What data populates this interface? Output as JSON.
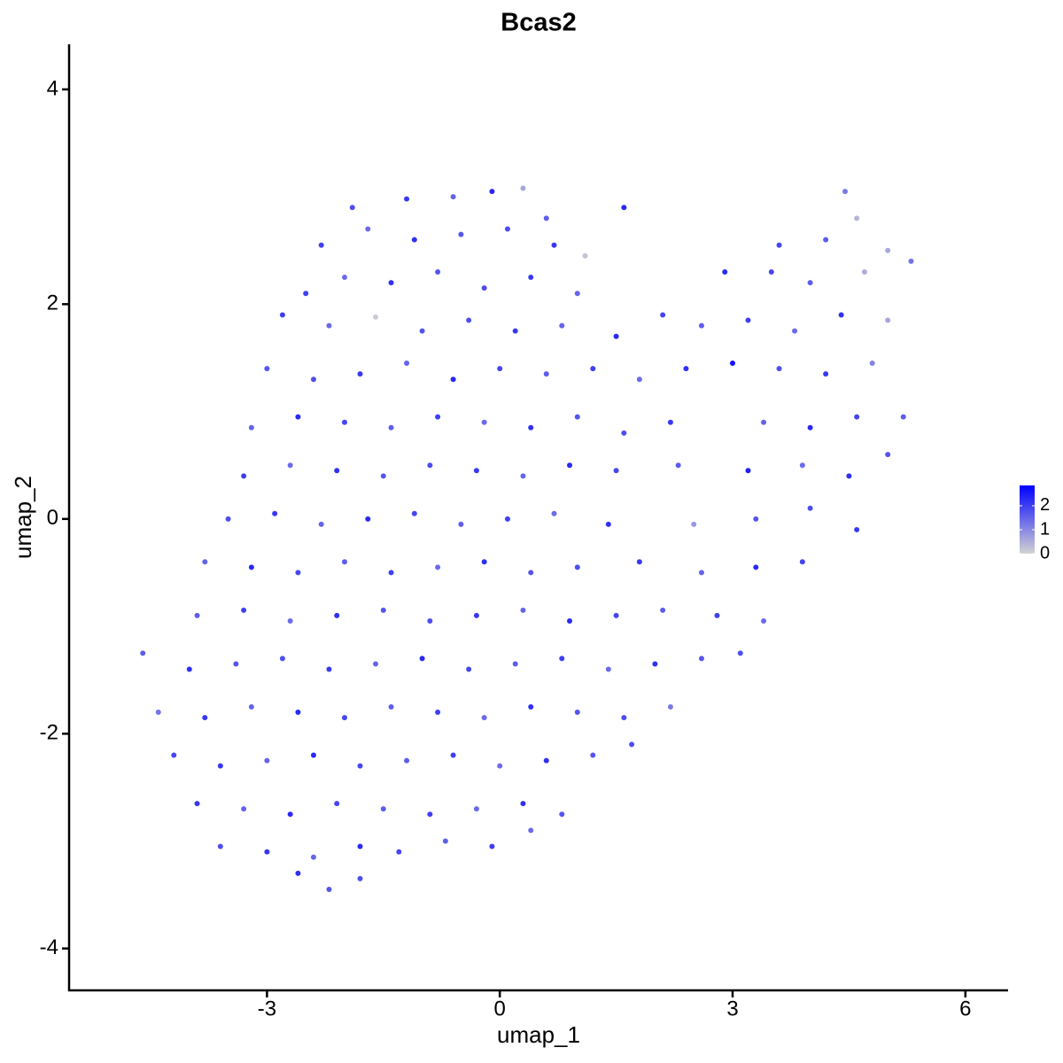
{
  "chart_data": {
    "type": "scatter",
    "title": "Bcas2",
    "x_label": "umap_1",
    "y_label": "umap_2",
    "xlim": [
      -5.55,
      6.55
    ],
    "ylim": [
      -4.39,
      4.42
    ],
    "xticks": [
      -3,
      0,
      3,
      6
    ],
    "yticks": [
      -4,
      -2,
      0,
      2,
      4
    ],
    "colorlim": [
      0,
      2.85
    ],
    "colorticks": [
      0,
      1,
      2
    ],
    "low_color": "#d3d3d3",
    "high_color": "#0000ff",
    "x": [
      -1.9,
      -1.2,
      -0.6,
      -0.1,
      0.3,
      0.6,
      4.45,
      -2.3,
      -1.7,
      -1.1,
      -0.5,
      0.1,
      0.7,
      1.1,
      1.6,
      3.6,
      4.2,
      4.6,
      5.0,
      -2.5,
      -2.0,
      -1.4,
      -0.8,
      -0.2,
      0.4,
      1.0,
      2.9,
      3.5,
      4.0,
      4.7,
      5.3,
      -2.8,
      -2.2,
      -1.6,
      -1.0,
      -0.4,
      0.2,
      0.8,
      1.5,
      2.1,
      2.6,
      3.2,
      3.8,
      4.4,
      5.0,
      -3.0,
      -2.4,
      -1.8,
      -1.2,
      -0.6,
      0.0,
      0.6,
      1.2,
      1.8,
      2.4,
      3.0,
      3.6,
      4.2,
      4.8,
      -3.2,
      -2.6,
      -2.0,
      -1.4,
      -0.8,
      -0.2,
      0.4,
      1.0,
      1.6,
      2.2,
      3.4,
      4.0,
      4.6,
      5.2,
      -3.3,
      -2.7,
      -2.1,
      -1.5,
      -0.9,
      -0.3,
      0.3,
      0.9,
      1.5,
      2.3,
      3.2,
      3.9,
      4.5,
      5.0,
      -3.5,
      -2.9,
      -2.3,
      -1.7,
      -1.1,
      -0.5,
      0.1,
      0.7,
      1.4,
      2.5,
      3.3,
      4.0,
      4.6,
      -3.8,
      -3.2,
      -2.6,
      -2.0,
      -1.4,
      -0.8,
      -0.2,
      0.4,
      1.0,
      1.8,
      2.6,
      3.3,
      3.9,
      -3.9,
      -3.3,
      -2.7,
      -2.1,
      -1.5,
      -0.9,
      -0.3,
      0.3,
      0.9,
      1.5,
      2.1,
      2.8,
      3.4,
      -4.6,
      -4.0,
      -3.4,
      -2.8,
      -2.2,
      -1.6,
      -1.0,
      -0.4,
      0.2,
      0.8,
      1.4,
      2.0,
      2.6,
      3.1,
      -4.4,
      -3.8,
      -3.2,
      -2.6,
      -2.0,
      -1.4,
      -0.8,
      -0.2,
      0.4,
      1.0,
      1.6,
      2.2,
      -4.2,
      -3.6,
      -3.0,
      -2.4,
      -1.8,
      -1.2,
      -0.6,
      0.0,
      0.6,
      1.2,
      1.7,
      -3.9,
      -3.3,
      -2.7,
      -2.1,
      -1.5,
      -0.9,
      -0.3,
      0.3,
      0.8,
      -3.6,
      -3.0,
      -2.4,
      -1.8,
      -1.3,
      -0.7,
      -0.1,
      0.4,
      -2.6,
      -2.2,
      -1.8
    ],
    "y": [
      2.9,
      2.98,
      3.0,
      3.05,
      3.08,
      2.8,
      3.05,
      2.55,
      2.7,
      2.6,
      2.65,
      2.7,
      2.55,
      2.45,
      2.9,
      2.55,
      2.6,
      2.8,
      2.5,
      2.1,
      2.25,
      2.2,
      2.3,
      2.15,
      2.25,
      2.1,
      2.3,
      2.3,
      2.2,
      2.3,
      2.4,
      1.9,
      1.8,
      1.88,
      1.75,
      1.85,
      1.75,
      1.8,
      1.7,
      1.9,
      1.8,
      1.85,
      1.75,
      1.9,
      1.85,
      1.4,
      1.3,
      1.35,
      1.45,
      1.3,
      1.4,
      1.35,
      1.4,
      1.3,
      1.4,
      1.45,
      1.4,
      1.35,
      1.45,
      0.85,
      0.95,
      0.9,
      0.85,
      0.95,
      0.9,
      0.85,
      0.95,
      0.8,
      0.9,
      0.9,
      0.85,
      0.95,
      0.95,
      0.4,
      0.5,
      0.45,
      0.4,
      0.5,
      0.45,
      0.4,
      0.5,
      0.45,
      0.5,
      0.45,
      0.5,
      0.4,
      0.6,
      0.0,
      0.05,
      -0.05,
      0.0,
      0.05,
      -0.05,
      0.0,
      0.05,
      -0.05,
      -0.05,
      0.0,
      0.1,
      -0.1,
      -0.4,
      -0.45,
      -0.5,
      -0.4,
      -0.5,
      -0.45,
      -0.4,
      -0.5,
      -0.45,
      -0.4,
      -0.5,
      -0.45,
      -0.4,
      -0.9,
      -0.85,
      -0.95,
      -0.9,
      -0.85,
      -0.95,
      -0.9,
      -0.85,
      -0.95,
      -0.9,
      -0.85,
      -0.9,
      -0.95,
      -1.25,
      -1.4,
      -1.35,
      -1.3,
      -1.4,
      -1.35,
      -1.3,
      -1.4,
      -1.35,
      -1.3,
      -1.4,
      -1.35,
      -1.3,
      -1.25,
      -1.8,
      -1.85,
      -1.75,
      -1.8,
      -1.85,
      -1.75,
      -1.8,
      -1.85,
      -1.75,
      -1.8,
      -1.85,
      -1.75,
      -2.2,
      -2.3,
      -2.25,
      -2.2,
      -2.3,
      -2.25,
      -2.2,
      -2.3,
      -2.25,
      -2.2,
      -2.1,
      -2.65,
      -2.7,
      -2.75,
      -2.65,
      -2.7,
      -2.75,
      -2.7,
      -2.65,
      -2.75,
      -3.05,
      -3.1,
      -3.15,
      -3.05,
      -3.1,
      -3.0,
      -3.05,
      -2.9,
      -3.3,
      -3.45,
      -3.35
    ],
    "color_values": [
      1.8,
      2.1,
      1.5,
      2.3,
      0.6,
      1.6,
      1.2,
      2.0,
      1.4,
      2.2,
      1.7,
      1.8,
      2.1,
      0.2,
      2.3,
      1.9,
      1.6,
      0.4,
      0.6,
      2.0,
      1.4,
      2.2,
      1.7,
      1.8,
      2.1,
      1.5,
      2.3,
      1.9,
      1.6,
      0.5,
      1.3,
      2.0,
      1.4,
      0.1,
      1.7,
      1.8,
      2.1,
      1.5,
      2.3,
      1.9,
      1.6,
      2.0,
      1.4,
      2.2,
      0.6,
      1.7,
      1.8,
      2.1,
      1.5,
      2.3,
      1.9,
      1.6,
      2.0,
      1.4,
      2.2,
      2.6,
      1.8,
      2.1,
      1.1,
      1.5,
      2.3,
      1.9,
      1.6,
      2.0,
      1.4,
      2.2,
      1.7,
      1.8,
      2.1,
      1.5,
      2.3,
      1.9,
      1.6,
      2.0,
      1.4,
      2.2,
      1.7,
      1.8,
      2.1,
      1.5,
      2.3,
      1.9,
      1.6,
      2.4,
      1.4,
      2.2,
      1.7,
      1.8,
      2.1,
      1.5,
      2.3,
      1.9,
      1.6,
      2.0,
      1.4,
      2.2,
      0.8,
      1.7,
      1.8,
      2.1,
      1.5,
      2.3,
      1.9,
      1.6,
      2.0,
      1.4,
      2.2,
      1.7,
      1.8,
      2.1,
      1.5,
      2.3,
      1.9,
      1.6,
      2.0,
      1.4,
      2.2,
      1.7,
      1.8,
      2.1,
      1.5,
      2.3,
      1.9,
      1.6,
      2.0,
      1.4,
      1.6,
      2.2,
      1.7,
      1.8,
      2.1,
      1.5,
      2.3,
      1.9,
      1.6,
      2.0,
      1.4,
      2.2,
      1.7,
      1.8,
      1.3,
      2.1,
      1.5,
      2.3,
      1.9,
      1.6,
      2.0,
      1.4,
      2.2,
      1.7,
      1.8,
      1.2,
      1.9,
      2.1,
      1.5,
      2.3,
      1.9,
      1.6,
      2.0,
      1.4,
      2.2,
      1.7,
      1.8,
      2.1,
      1.5,
      2.3,
      1.9,
      1.6,
      2.0,
      1.4,
      2.2,
      1.7,
      1.8,
      2.1,
      1.5,
      2.3,
      1.9,
      1.6,
      2.0,
      1.4,
      2.2,
      1.7,
      1.8
    ]
  }
}
